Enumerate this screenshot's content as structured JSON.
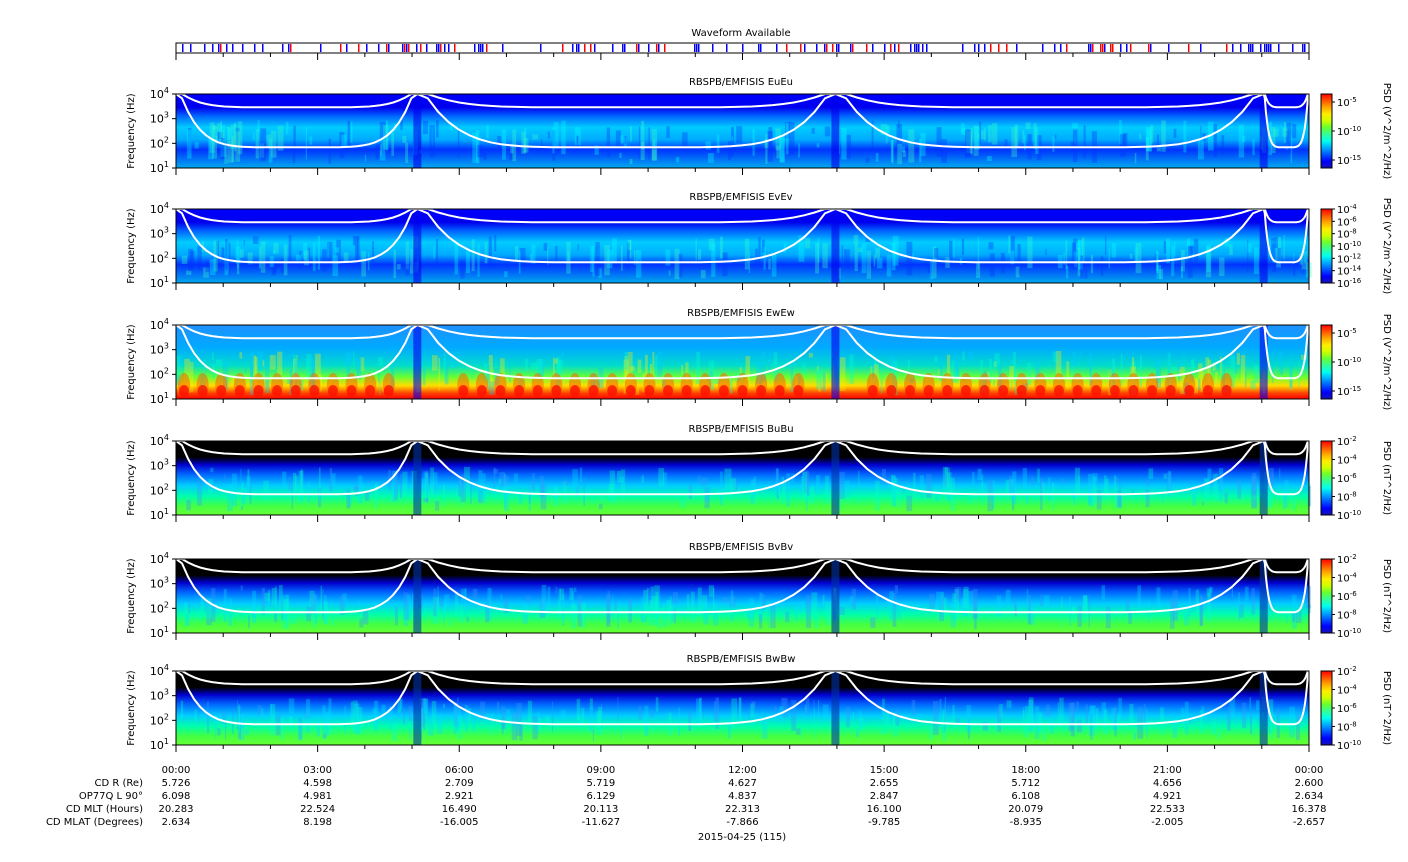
{
  "waveform": {
    "title": "Waveform Available",
    "color": "#0000ff",
    "tick_color": "#ff0000"
  },
  "colors": {
    "colormap": [
      "#1414b4",
      "#0000ff",
      "#0055ff",
      "#00aaff",
      "#00ffee",
      "#33ff99",
      "#66ff33",
      "#ccff00",
      "#ffee00",
      "#ffaa00",
      "#ff5500",
      "#ff0000"
    ],
    "background_dark": "#000000",
    "curve": "#ffffff"
  },
  "chart_data": [
    {
      "type": "heatmap",
      "title": "RBSPB/EMFISIS  EuEu",
      "ylabel": "Frequency (Hz)",
      "y_scale": "log",
      "ylim": [
        10,
        10000
      ],
      "yticks": [
        "10^1",
        "10^2",
        "10^3",
        "10^4"
      ],
      "colorbar": {
        "label": "PSD (V^2/m^2/Hz)",
        "ticks": [
          "10^-5",
          "10^-10",
          "10^-15"
        ],
        "scale": "log"
      },
      "style": "electric"
    },
    {
      "type": "heatmap",
      "title": "RBSPB/EMFISIS  EvEv",
      "ylabel": "Frequency (Hz)",
      "y_scale": "log",
      "ylim": [
        10,
        10000
      ],
      "yticks": [
        "10^1",
        "10^2",
        "10^3",
        "10^4"
      ],
      "colorbar": {
        "label": "PSD (V^2/m^2/Hz)",
        "ticks": [
          "10^-4",
          "10^-6",
          "10^-8",
          "10^-10",
          "10^-12",
          "10^-14",
          "10^-16"
        ],
        "scale": "log"
      },
      "style": "electric"
    },
    {
      "type": "heatmap",
      "title": "RBSPB/EMFISIS  EwEw",
      "ylabel": "Frequency (Hz)",
      "y_scale": "log",
      "ylim": [
        10,
        10000
      ],
      "yticks": [
        "10^1",
        "10^2",
        "10^3",
        "10^4"
      ],
      "colorbar": {
        "label": "PSD (V^2/m^2/Hz)",
        "ticks": [
          "10^-5",
          "10^-10",
          "10^-15"
        ],
        "scale": "log"
      },
      "style": "ew"
    },
    {
      "type": "heatmap",
      "title": "RBSPB/EMFISIS  BuBu",
      "ylabel": "Frequency (Hz)",
      "y_scale": "log",
      "ylim": [
        10,
        10000
      ],
      "yticks": [
        "10^1",
        "10^2",
        "10^3",
        "10^4"
      ],
      "colorbar": {
        "label": "PSD (nT^2/Hz)",
        "ticks": [
          "10^-2",
          "10^-4",
          "10^-6",
          "10^-8",
          "10^-10"
        ],
        "scale": "log"
      },
      "style": "magnetic"
    },
    {
      "type": "heatmap",
      "title": "RBSPB/EMFISIS  BvBv",
      "ylabel": "Frequency (Hz)",
      "y_scale": "log",
      "ylim": [
        10,
        10000
      ],
      "yticks": [
        "10^1",
        "10^2",
        "10^3",
        "10^4"
      ],
      "colorbar": {
        "label": "PSD (nT^2/Hz)",
        "ticks": [
          "10^-2",
          "10^-4",
          "10^-6",
          "10^-8",
          "10^-10"
        ],
        "scale": "log"
      },
      "style": "magnetic"
    },
    {
      "type": "heatmap",
      "title": "RBSPB/EMFISIS  BwBw",
      "ylabel": "Frequency (Hz)",
      "y_scale": "log",
      "ylim": [
        10,
        10000
      ],
      "yticks": [
        "10^1",
        "10^2",
        "10^3",
        "10^4"
      ],
      "colorbar": {
        "label": "PSD (nT^2/Hz)",
        "ticks": [
          "10^-2",
          "10^-4",
          "10^-6",
          "10^-8",
          "10^-10"
        ],
        "scale": "log"
      },
      "style": "magnetic"
    }
  ],
  "time_axis": {
    "tick_labels": [
      "00:00",
      "03:00",
      "06:00",
      "09:00",
      "12:00",
      "15:00",
      "18:00",
      "21:00",
      "00:00"
    ],
    "date_label": "2015-04-25 (115)"
  },
  "ephemeris": {
    "rows": [
      {
        "label": "CD R (Re)",
        "values": [
          "5.726",
          "4.598",
          "2.709",
          "5.719",
          "4.627",
          "2.655",
          "5.712",
          "4.656",
          "2.600"
        ]
      },
      {
        "label": "OP77Q L 90°",
        "values": [
          "6.098",
          "4.981",
          "2.921",
          "6.129",
          "4.837",
          "2.847",
          "6.108",
          "4.921",
          "2.634"
        ]
      },
      {
        "label": "CD MLT (Hours)",
        "values": [
          "20.283",
          "22.524",
          "16.490",
          "20.113",
          "22.313",
          "16.100",
          "20.079",
          "22.533",
          "16.378"
        ]
      },
      {
        "label": "CD MLAT (Degrees)",
        "values": [
          "2.634",
          "8.198",
          "-16.005",
          "-11.627",
          "-7.866",
          "-9.785",
          "-8.935",
          "-2.005",
          "-2.657"
        ]
      }
    ]
  }
}
